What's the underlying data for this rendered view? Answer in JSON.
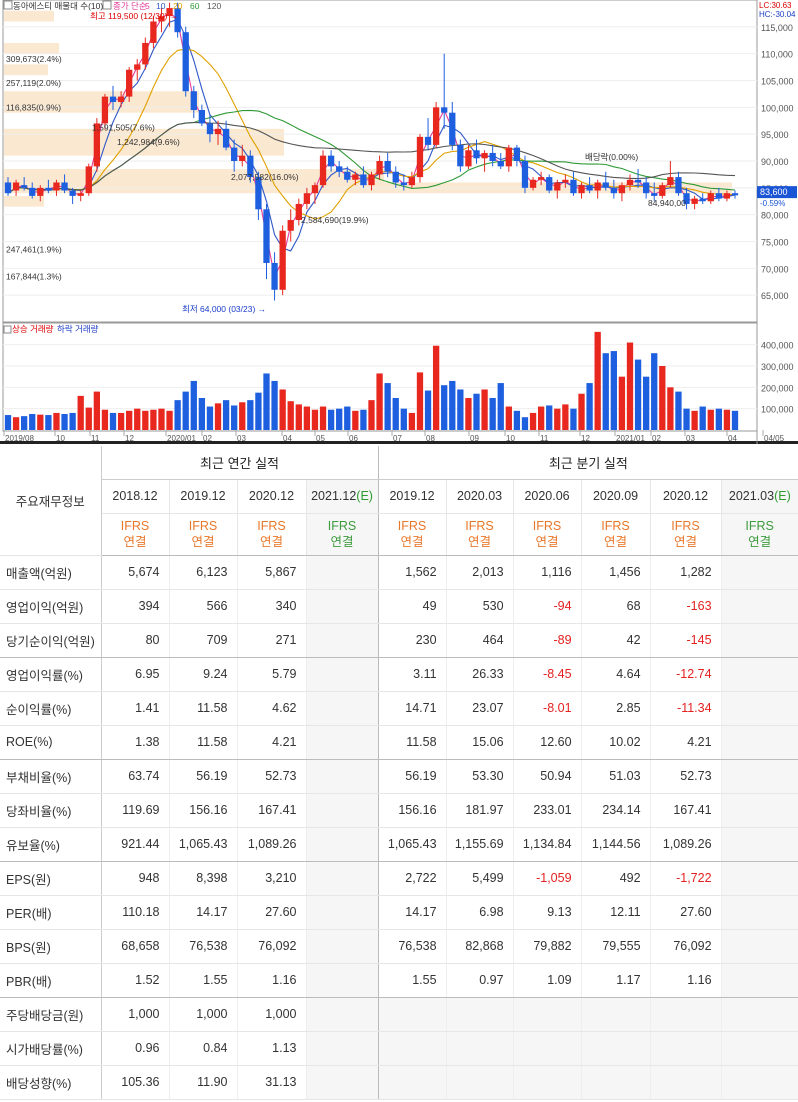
{
  "chart": {
    "stock_label": "동아에스티 매물대 수(10)",
    "ma_label": "종가 단순",
    "ma_periods": [
      "5",
      "10",
      "20",
      "60",
      "120"
    ],
    "ma_colors": [
      "#e23c9a",
      "#2f58c9",
      "#e0a000",
      "#2e9a35",
      "#555555"
    ],
    "lc_label": "LC:30.63",
    "hc_label": "HC:-30.04",
    "high_label": "최고 119,500 (12/30)",
    "low_label": "최저 64,000 (03/23)",
    "dividend_label": "배당락(0.00%)",
    "current_price": "83,600",
    "current_change": "-0.59%",
    "volume_up_label": "상승 거래량",
    "volume_down_label": "하락 거래량",
    "price_axis": [
      "115,000",
      "110,000",
      "105,000",
      "100,000",
      "95,000",
      "90,000",
      "85,000",
      "80,000",
      "75,000",
      "70,000",
      "65,000"
    ],
    "volume_axis": [
      "400,000",
      "300,000",
      "200,000",
      "100,000"
    ],
    "time_axis": [
      "2019/08",
      "10",
      "11",
      "12",
      "2020/01",
      "02",
      "03",
      "04",
      "05",
      "06",
      "07",
      "08",
      "09",
      "10",
      "11",
      "12",
      "2021/01",
      "02",
      "03",
      "04",
      "04/05"
    ],
    "profile_labels": [
      "309,673(2.4%)",
      "257,119(2.0%)",
      "116,835(0.9%)",
      "1,242,984(9.6%)",
      "2,584,690(19.9%)",
      "247,461(1.9%)",
      "167,844(1.3%)"
    ],
    "profile_labels_inline": [
      "1,591,505(7.6%)",
      "2,077,582(16.0%)",
      "84,940,00"
    ],
    "price_ylim": [
      60000,
      120000
    ],
    "volume_ylim": [
      0,
      450000
    ],
    "candles": [
      {
        "o": 86000,
        "h": 87000,
        "l": 83500,
        "c": 84000,
        "v": 70000
      },
      {
        "o": 84500,
        "h": 86500,
        "l": 83500,
        "c": 86000,
        "v": 60000
      },
      {
        "o": 85500,
        "h": 87000,
        "l": 84500,
        "c": 85000,
        "v": 65000
      },
      {
        "o": 85000,
        "h": 86000,
        "l": 83000,
        "c": 83500,
        "v": 75000
      },
      {
        "o": 83500,
        "h": 85500,
        "l": 82500,
        "c": 85000,
        "v": 72000
      },
      {
        "o": 85000,
        "h": 86500,
        "l": 84000,
        "c": 84500,
        "v": 70000
      },
      {
        "o": 84500,
        "h": 86500,
        "l": 83500,
        "c": 86000,
        "v": 80000
      },
      {
        "o": 86000,
        "h": 87500,
        "l": 84000,
        "c": 84500,
        "v": 75000
      },
      {
        "o": 84500,
        "h": 85000,
        "l": 82000,
        "c": 83500,
        "v": 80000
      },
      {
        "o": 83500,
        "h": 84500,
        "l": 82500,
        "c": 84000,
        "v": 160000
      },
      {
        "o": 84000,
        "h": 89500,
        "l": 83500,
        "c": 89000,
        "v": 105000
      },
      {
        "o": 89000,
        "h": 98000,
        "l": 88000,
        "c": 97000,
        "v": 180000
      },
      {
        "o": 97000,
        "h": 102500,
        "l": 96000,
        "c": 102000,
        "v": 95000
      },
      {
        "o": 102000,
        "h": 104000,
        "l": 99500,
        "c": 101000,
        "v": 80000
      },
      {
        "o": 101000,
        "h": 103000,
        "l": 100000,
        "c": 102000,
        "v": 80000
      },
      {
        "o": 102000,
        "h": 107500,
        "l": 101000,
        "c": 107000,
        "v": 90000
      },
      {
        "o": 107000,
        "h": 109000,
        "l": 105000,
        "c": 108000,
        "v": 100000
      },
      {
        "o": 108000,
        "h": 113000,
        "l": 107000,
        "c": 112000,
        "v": 90000
      },
      {
        "o": 112000,
        "h": 117000,
        "l": 111000,
        "c": 116000,
        "v": 95000
      },
      {
        "o": 116000,
        "h": 118500,
        "l": 114000,
        "c": 117000,
        "v": 100000
      },
      {
        "o": 117000,
        "h": 119500,
        "l": 115000,
        "c": 118500,
        "v": 90000
      },
      {
        "o": 118500,
        "h": 119500,
        "l": 113000,
        "c": 114000,
        "v": 140000
      },
      {
        "o": 114000,
        "h": 115000,
        "l": 102000,
        "c": 103000,
        "v": 180000
      },
      {
        "o": 103000,
        "h": 104000,
        "l": 98000,
        "c": 99500,
        "v": 230000
      },
      {
        "o": 99500,
        "h": 100500,
        "l": 96500,
        "c": 97000,
        "v": 150000
      },
      {
        "o": 97000,
        "h": 98500,
        "l": 93500,
        "c": 95000,
        "v": 110000
      },
      {
        "o": 95000,
        "h": 97500,
        "l": 93000,
        "c": 96000,
        "v": 125000
      },
      {
        "o": 96000,
        "h": 97500,
        "l": 92000,
        "c": 92500,
        "v": 140000
      },
      {
        "o": 92500,
        "h": 94000,
        "l": 88000,
        "c": 90000,
        "v": 115000
      },
      {
        "o": 90000,
        "h": 93000,
        "l": 89000,
        "c": 91000,
        "v": 130000
      },
      {
        "o": 91000,
        "h": 92000,
        "l": 86000,
        "c": 87000,
        "v": 140000
      },
      {
        "o": 87000,
        "h": 88000,
        "l": 79000,
        "c": 81000,
        "v": 175000
      },
      {
        "o": 81000,
        "h": 82000,
        "l": 68000,
        "c": 71000,
        "v": 265000
      },
      {
        "o": 71000,
        "h": 73000,
        "l": 64000,
        "c": 66000,
        "v": 230000
      },
      {
        "o": 66000,
        "h": 78000,
        "l": 65000,
        "c": 77000,
        "v": 190000
      },
      {
        "o": 77000,
        "h": 81000,
        "l": 75000,
        "c": 79000,
        "v": 135000
      },
      {
        "o": 79000,
        "h": 83000,
        "l": 78000,
        "c": 82000,
        "v": 120000
      },
      {
        "o": 82000,
        "h": 85000,
        "l": 81000,
        "c": 84000,
        "v": 110000
      },
      {
        "o": 84000,
        "h": 86000,
        "l": 82000,
        "c": 85500,
        "v": 95000
      },
      {
        "o": 85500,
        "h": 92000,
        "l": 85000,
        "c": 91000,
        "v": 110000
      },
      {
        "o": 91000,
        "h": 92000,
        "l": 88000,
        "c": 89000,
        "v": 95000
      },
      {
        "o": 89000,
        "h": 90000,
        "l": 87000,
        "c": 88000,
        "v": 100000
      },
      {
        "o": 88000,
        "h": 89000,
        "l": 86000,
        "c": 86500,
        "v": 110000
      },
      {
        "o": 86500,
        "h": 88000,
        "l": 85500,
        "c": 87500,
        "v": 90000
      },
      {
        "o": 87500,
        "h": 89000,
        "l": 85000,
        "c": 85500,
        "v": 95000
      },
      {
        "o": 85500,
        "h": 88000,
        "l": 84500,
        "c": 87500,
        "v": 140000
      },
      {
        "o": 87500,
        "h": 91000,
        "l": 86500,
        "c": 90000,
        "v": 265000
      },
      {
        "o": 90000,
        "h": 91500,
        "l": 87000,
        "c": 88000,
        "v": 220000
      },
      {
        "o": 88000,
        "h": 89000,
        "l": 85000,
        "c": 86000,
        "v": 150000
      },
      {
        "o": 86000,
        "h": 87500,
        "l": 84500,
        "c": 85500,
        "v": 100000
      },
      {
        "o": 85500,
        "h": 88000,
        "l": 85000,
        "c": 87000,
        "v": 80000
      },
      {
        "o": 87000,
        "h": 95000,
        "l": 86000,
        "c": 94500,
        "v": 270000
      },
      {
        "o": 94500,
        "h": 98000,
        "l": 92000,
        "c": 93000,
        "v": 185000
      },
      {
        "o": 93000,
        "h": 101000,
        "l": 92500,
        "c": 100000,
        "v": 395000
      },
      {
        "o": 100000,
        "h": 110000,
        "l": 96000,
        "c": 99000,
        "v": 210000
      },
      {
        "o": 99000,
        "h": 101000,
        "l": 92000,
        "c": 93000,
        "v": 230000
      },
      {
        "o": 93000,
        "h": 94000,
        "l": 88000,
        "c": 89000,
        "v": 190000
      },
      {
        "o": 89000,
        "h": 93000,
        "l": 88500,
        "c": 92000,
        "v": 150000
      },
      {
        "o": 92000,
        "h": 94000,
        "l": 89500,
        "c": 90500,
        "v": 170000
      },
      {
        "o": 90500,
        "h": 92000,
        "l": 88000,
        "c": 91500,
        "v": 190000
      },
      {
        "o": 91500,
        "h": 93000,
        "l": 89000,
        "c": 90000,
        "v": 150000
      },
      {
        "o": 90000,
        "h": 91500,
        "l": 88500,
        "c": 89000,
        "v": 220000
      },
      {
        "o": 89000,
        "h": 93000,
        "l": 88000,
        "c": 92500,
        "v": 110000
      },
      {
        "o": 92500,
        "h": 93000,
        "l": 89000,
        "c": 90000,
        "v": 90000
      },
      {
        "o": 90000,
        "h": 91000,
        "l": 84000,
        "c": 85000,
        "v": 60000
      },
      {
        "o": 85000,
        "h": 87000,
        "l": 84500,
        "c": 86500,
        "v": 80000
      },
      {
        "o": 86500,
        "h": 88000,
        "l": 85500,
        "c": 87000,
        "v": 110000
      },
      {
        "o": 87000,
        "h": 87500,
        "l": 84000,
        "c": 84500,
        "v": 115000
      },
      {
        "o": 84500,
        "h": 86500,
        "l": 83000,
        "c": 86000,
        "v": 100000
      },
      {
        "o": 86000,
        "h": 87500,
        "l": 85000,
        "c": 86500,
        "v": 120000
      },
      {
        "o": 86500,
        "h": 88000,
        "l": 83500,
        "c": 84000,
        "v": 100000
      },
      {
        "o": 84000,
        "h": 86000,
        "l": 83000,
        "c": 85500,
        "v": 170000
      },
      {
        "o": 85500,
        "h": 87000,
        "l": 84000,
        "c": 84500,
        "v": 220000
      },
      {
        "o": 84500,
        "h": 86500,
        "l": 83000,
        "c": 86000,
        "v": 460000
      },
      {
        "o": 86000,
        "h": 88000,
        "l": 84500,
        "c": 85000,
        "v": 360000
      },
      {
        "o": 85000,
        "h": 86500,
        "l": 83000,
        "c": 84000,
        "v": 370000
      },
      {
        "o": 84000,
        "h": 86000,
        "l": 82500,
        "c": 85500,
        "v": 250000
      },
      {
        "o": 85500,
        "h": 87500,
        "l": 84500,
        "c": 86500,
        "v": 410000
      },
      {
        "o": 86500,
        "h": 88500,
        "l": 85000,
        "c": 86000,
        "v": 330000
      },
      {
        "o": 86000,
        "h": 87000,
        "l": 83000,
        "c": 84000,
        "v": 250000
      },
      {
        "o": 84000,
        "h": 86000,
        "l": 82500,
        "c": 83500,
        "v": 360000
      },
      {
        "o": 83500,
        "h": 86000,
        "l": 83000,
        "c": 85500,
        "v": 300000
      },
      {
        "o": 85500,
        "h": 90000,
        "l": 85000,
        "c": 87000,
        "v": 200000
      },
      {
        "o": 87000,
        "h": 88000,
        "l": 83500,
        "c": 84000,
        "v": 180000
      },
      {
        "o": 84000,
        "h": 85000,
        "l": 81000,
        "c": 82000,
        "v": 100000
      },
      {
        "o": 82000,
        "h": 83500,
        "l": 81000,
        "c": 83000,
        "v": 90000
      },
      {
        "o": 83000,
        "h": 84000,
        "l": 82000,
        "c": 82500,
        "v": 110000
      },
      {
        "o": 82500,
        "h": 84500,
        "l": 82000,
        "c": 84000,
        "v": 95000
      },
      {
        "o": 84000,
        "h": 85000,
        "l": 82500,
        "c": 83000,
        "v": 100000
      },
      {
        "o": 83000,
        "h": 84500,
        "l": 82500,
        "c": 84000,
        "v": 95000
      },
      {
        "o": 84000,
        "h": 84500,
        "l": 83000,
        "c": 83600,
        "v": 90000
      }
    ]
  },
  "table": {
    "corner_label": "주요재무정보",
    "annual_header": "최근 연간 실적",
    "quarter_header": "최근 분기 실적",
    "annual_years": [
      "2018.12",
      "2019.12",
      "2020.12"
    ],
    "annual_est_year": "2021.12",
    "annual_est_suffix": "(E)",
    "quarter_years": [
      "2019.12",
      "2020.03",
      "2020.06",
      "2020.09",
      "2020.12"
    ],
    "quarter_est_year": "2021.03",
    "quarter_est_suffix": "(E)",
    "ifrs_line1": "IFRS",
    "ifrs_line2": "연결",
    "rows": [
      {
        "label": "매출액(억원)",
        "annual": [
          "5,674",
          "6,123",
          "5,867",
          ""
        ],
        "quarter": [
          "1,562",
          "2,013",
          "1,116",
          "1,456",
          "1,282",
          ""
        ]
      },
      {
        "label": "영업이익(억원)",
        "annual": [
          "394",
          "566",
          "340",
          ""
        ],
        "quarter": [
          "49",
          "530",
          "-94",
          "68",
          "-163",
          ""
        ]
      },
      {
        "label": "당기순이익(억원)",
        "annual": [
          "80",
          "709",
          "271",
          ""
        ],
        "quarter": [
          "230",
          "464",
          "-89",
          "42",
          "-145",
          ""
        ]
      },
      {
        "label": "영업이익률(%)",
        "annual": [
          "6.95",
          "9.24",
          "5.79",
          ""
        ],
        "quarter": [
          "3.11",
          "26.33",
          "-8.45",
          "4.64",
          "-12.74",
          ""
        ]
      },
      {
        "label": "순이익률(%)",
        "annual": [
          "1.41",
          "11.58",
          "4.62",
          ""
        ],
        "quarter": [
          "14.71",
          "23.07",
          "-8.01",
          "2.85",
          "-11.34",
          ""
        ]
      },
      {
        "label": "ROE(%)",
        "annual": [
          "1.38",
          "11.58",
          "4.21",
          ""
        ],
        "quarter": [
          "11.58",
          "15.06",
          "12.60",
          "10.02",
          "4.21",
          ""
        ]
      },
      {
        "label": "부채비율(%)",
        "annual": [
          "63.74",
          "56.19",
          "52.73",
          ""
        ],
        "quarter": [
          "56.19",
          "53.30",
          "50.94",
          "51.03",
          "52.73",
          ""
        ]
      },
      {
        "label": "당좌비율(%)",
        "annual": [
          "119.69",
          "156.16",
          "167.41",
          ""
        ],
        "quarter": [
          "156.16",
          "181.97",
          "233.01",
          "234.14",
          "167.41",
          ""
        ]
      },
      {
        "label": "유보율(%)",
        "annual": [
          "921.44",
          "1,065.43",
          "1,089.26",
          ""
        ],
        "quarter": [
          "1,065.43",
          "1,155.69",
          "1,134.84",
          "1,144.56",
          "1,089.26",
          ""
        ]
      },
      {
        "label": "EPS(원)",
        "annual": [
          "948",
          "8,398",
          "3,210",
          ""
        ],
        "quarter": [
          "2,722",
          "5,499",
          "-1,059",
          "492",
          "-1,722",
          ""
        ]
      },
      {
        "label": "PER(배)",
        "annual": [
          "110.18",
          "14.17",
          "27.60",
          ""
        ],
        "quarter": [
          "14.17",
          "6.98",
          "9.13",
          "12.11",
          "27.60",
          ""
        ]
      },
      {
        "label": "BPS(원)",
        "annual": [
          "68,658",
          "76,538",
          "76,092",
          ""
        ],
        "quarter": [
          "76,538",
          "82,868",
          "79,882",
          "79,555",
          "76,092",
          ""
        ]
      },
      {
        "label": "PBR(배)",
        "annual": [
          "1.52",
          "1.55",
          "1.16",
          ""
        ],
        "quarter": [
          "1.55",
          "0.97",
          "1.09",
          "1.17",
          "1.16",
          ""
        ]
      },
      {
        "label": "주당배당금(원)",
        "annual": [
          "1,000",
          "1,000",
          "1,000",
          ""
        ],
        "quarter": [
          "",
          "",
          "",
          "",
          "",
          ""
        ]
      },
      {
        "label": "시가배당률(%)",
        "annual": [
          "0.96",
          "0.84",
          "1.13",
          ""
        ],
        "quarter": [
          "",
          "",
          "",
          "",
          "",
          ""
        ]
      },
      {
        "label": "배당성향(%)",
        "annual": [
          "105.36",
          "11.90",
          "31.13",
          ""
        ],
        "quarter": [
          "",
          "",
          "",
          "",
          "",
          ""
        ]
      }
    ]
  }
}
